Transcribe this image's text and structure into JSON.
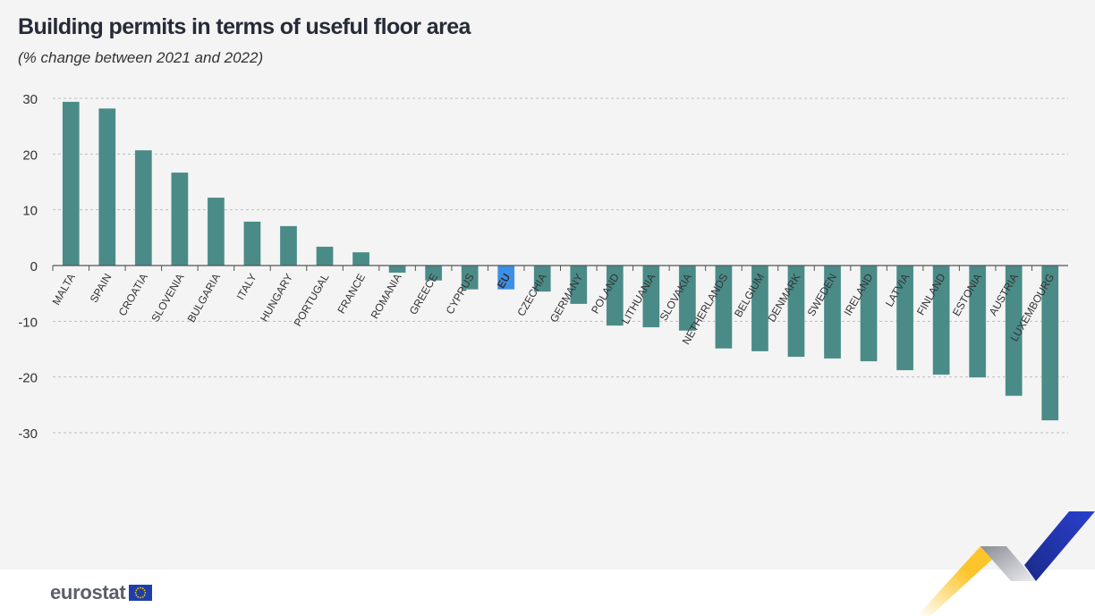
{
  "header": {
    "title": "Building permits in terms of useful floor area",
    "subtitle": "(% change between 2021 and 2022)"
  },
  "footer": {
    "logo_text": "eurostat"
  },
  "colors": {
    "bar": "#4a8b87",
    "highlight": "#3d8ee8",
    "grid": "#bdbdbd",
    "background": "#f4f4f4"
  },
  "chart_data": {
    "type": "bar",
    "title": "Building permits in terms of useful floor area",
    "subtitle": "(% change between 2021 and 2022)",
    "xlabel": "",
    "ylabel": "",
    "ylim": [
      -30,
      30
    ],
    "yticks": [
      30,
      20,
      10,
      0,
      -10,
      -20,
      -30
    ],
    "grid": true,
    "highlight_category": "EU",
    "categories": [
      "MALTA",
      "SPAIN",
      "CROATIA",
      "SLOVENIA",
      "BULGARIA",
      "ITALY",
      "HUNGARY",
      "PORTUGAL",
      "FRANCE",
      "ROMANIA",
      "GREECE",
      "CYPRUS",
      "EU",
      "CZECHIA",
      "GERMANY",
      "POLAND",
      "LITHUANIA",
      "SLOVAKIA",
      "NETHERLANDS",
      "BELGIUM",
      "DENMARK",
      "SWEDEN",
      "IRELAND",
      "LATVIA",
      "FINLAND",
      "ESTONIA",
      "AUSTRIA",
      "LUXEMBOURG"
    ],
    "values": [
      29.4,
      28.2,
      20.7,
      16.7,
      12.2,
      7.9,
      7.1,
      3.4,
      2.4,
      -1.3,
      -2.7,
      -4.3,
      -4.3,
      -4.7,
      -6.9,
      -10.8,
      -11.1,
      -11.7,
      -14.9,
      -15.4,
      -16.4,
      -16.7,
      -17.2,
      -18.8,
      -19.6,
      -20.1,
      -23.4,
      -27.8
    ]
  }
}
